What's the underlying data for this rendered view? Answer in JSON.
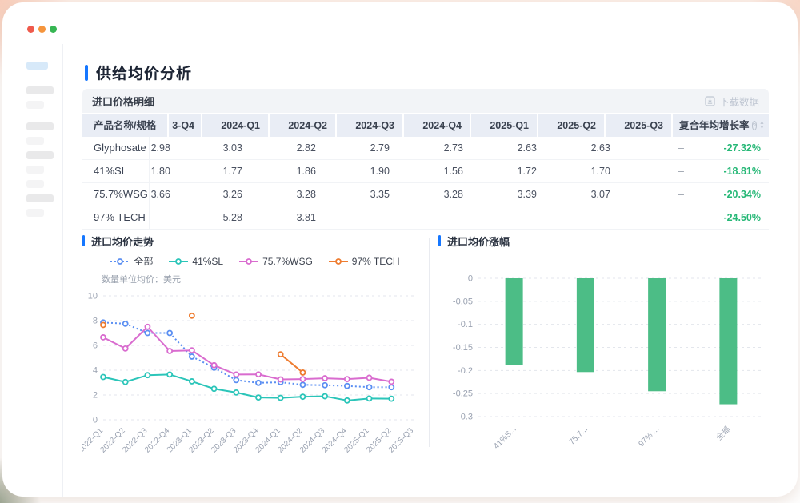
{
  "window": {
    "traffic_lights": [
      "#ef5a4c",
      "#f5953d",
      "#37b653"
    ]
  },
  "page": {
    "title": "供给均价分析",
    "accent_color": "#1677ff"
  },
  "table_section": {
    "title": "进口价格明细",
    "download_label": "下载数据",
    "columns": [
      "产品名称/规格",
      "3-Q4",
      "2024-Q1",
      "2024-Q2",
      "2024-Q3",
      "2024-Q4",
      "2025-Q1",
      "2025-Q2",
      "2025-Q3",
      "复合年均增长率"
    ],
    "cagr_color": "#27b877",
    "rows": [
      {
        "name": "Glyphosate",
        "values": [
          "2.98",
          "3.03",
          "2.82",
          "2.79",
          "2.73",
          "2.63",
          "2.63",
          "–"
        ],
        "cagr": "-27.32%"
      },
      {
        "name": "41%SL",
        "values": [
          "1.80",
          "1.77",
          "1.86",
          "1.90",
          "1.56",
          "1.72",
          "1.70",
          "–"
        ],
        "cagr": "-18.81%"
      },
      {
        "name": "75.7%WSG",
        "values": [
          "3.66",
          "3.26",
          "3.28",
          "3.35",
          "3.28",
          "3.39",
          "3.07",
          "–"
        ],
        "cagr": "-20.34%"
      },
      {
        "name": "97% TECH",
        "values": [
          "–",
          "5.28",
          "3.81",
          "–",
          "–",
          "–",
          "–",
          "–"
        ],
        "cagr": "-24.50%"
      }
    ]
  },
  "chart_data": [
    {
      "type": "line",
      "title": "进口均价走势",
      "subtitle": "数量单位均价：美元",
      "legend_position": "top",
      "grid": true,
      "x": [
        "2022-Q1",
        "2022-Q2",
        "2022-Q3",
        "2022-Q4",
        "2023-Q1",
        "2023-Q2",
        "2023-Q3",
        "2023-Q4",
        "2024-Q1",
        "2024-Q2",
        "2024-Q3",
        "2024-Q4",
        "2025-Q1",
        "2025-Q2",
        "2025-Q3"
      ],
      "ylim": [
        0,
        10
      ],
      "yticks": [
        0,
        2,
        4,
        6,
        8,
        10
      ],
      "series": [
        {
          "name": "全部",
          "color": "#5b8ff2",
          "line_style": "dotted",
          "values": [
            7.85,
            7.75,
            7.0,
            7.0,
            5.1,
            4.2,
            3.2,
            2.98,
            3.03,
            2.82,
            2.79,
            2.73,
            2.63,
            2.63,
            null
          ]
        },
        {
          "name": "41%SL",
          "color": "#2bc5b9",
          "line_style": "solid",
          "values": [
            3.45,
            3.05,
            3.6,
            3.65,
            3.1,
            2.5,
            2.2,
            1.8,
            1.77,
            1.86,
            1.9,
            1.56,
            1.72,
            1.7,
            null
          ]
        },
        {
          "name": "75.7%WSG",
          "color": "#d96ccf",
          "line_style": "solid",
          "values": [
            6.65,
            5.75,
            7.5,
            5.55,
            5.6,
            4.4,
            3.65,
            3.66,
            3.26,
            3.28,
            3.35,
            3.28,
            3.39,
            3.07,
            null
          ]
        },
        {
          "name": "97% TECH",
          "color": "#ee7c30",
          "line_style": "solid",
          "values": [
            7.65,
            null,
            null,
            null,
            8.4,
            null,
            null,
            null,
            5.28,
            3.81,
            null,
            null,
            null,
            null,
            null
          ]
        }
      ]
    },
    {
      "type": "bar",
      "title": "进口均价涨幅",
      "categories": [
        "41%S...",
        "75.7...",
        "97% ...",
        "全部"
      ],
      "values": [
        -0.1881,
        -0.2034,
        -0.245,
        -0.2732
      ],
      "bar_color": "#4cbd86",
      "ylim": [
        -0.3,
        0
      ],
      "yticks": [
        0,
        -0.05,
        -0.1,
        -0.15,
        -0.2,
        -0.25,
        -0.3
      ],
      "ytick_labels": [
        "0",
        "-0.05",
        "-0.1",
        "-0.15",
        "-0.2",
        "-0.25",
        "-0.3"
      ],
      "grid": true
    }
  ]
}
